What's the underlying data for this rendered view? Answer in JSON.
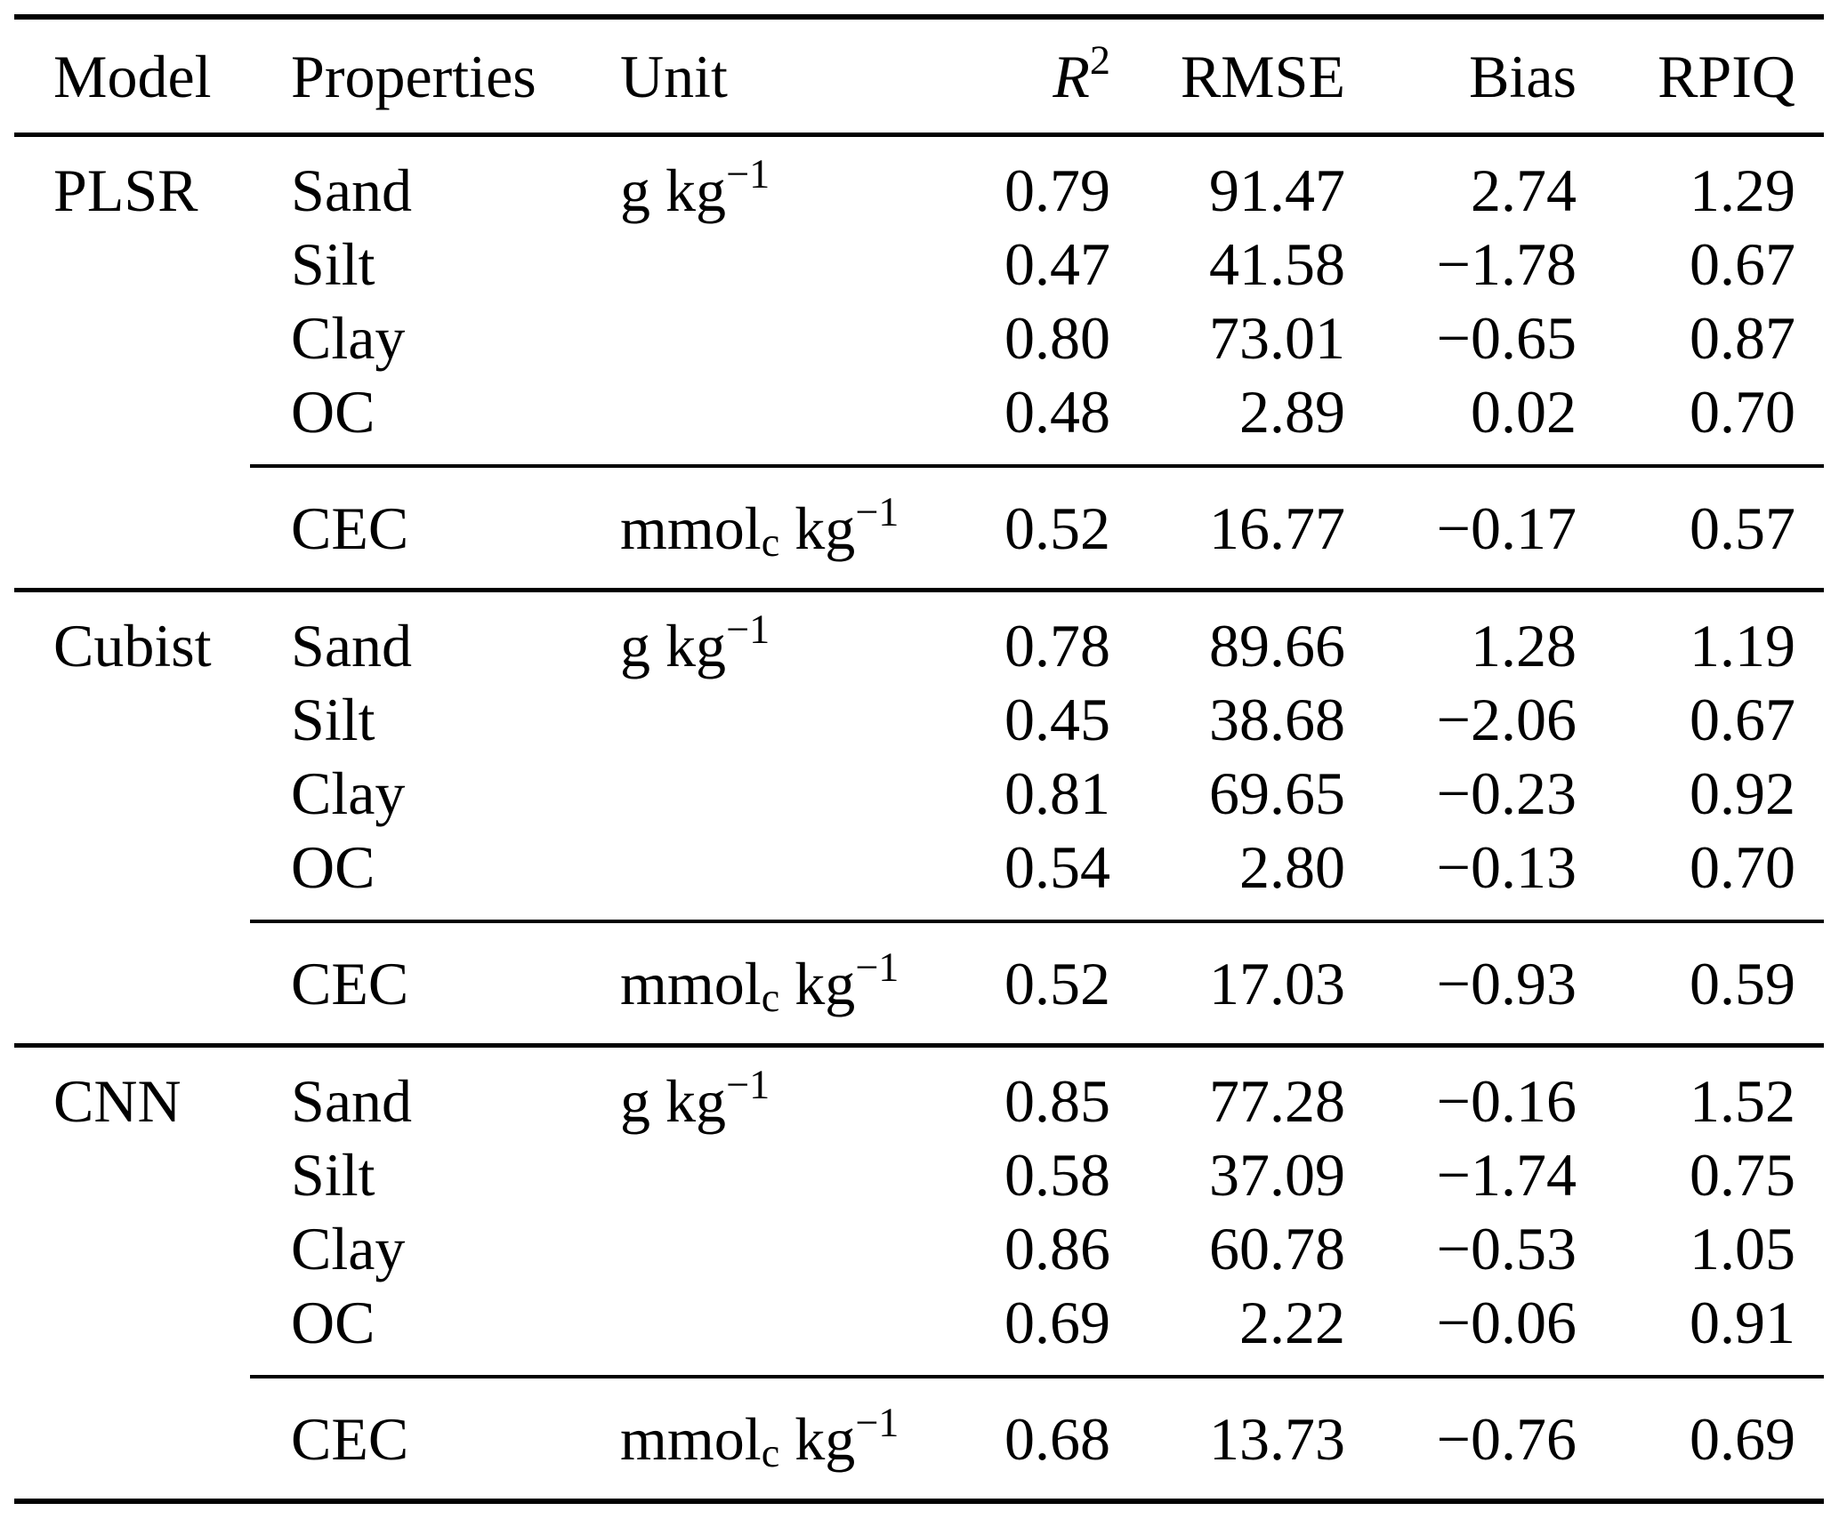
{
  "header": {
    "model": "Model",
    "properties": "Properties",
    "unit": "Unit",
    "r2_base": "R",
    "r2_sup": "2",
    "rmse": "RMSE",
    "bias": "Bias",
    "rpiq": "RPIQ"
  },
  "sections": [
    {
      "model": "PLSR",
      "unit": {
        "base": "g kg",
        "sup": "−1"
      },
      "rows": [
        {
          "property": "Sand",
          "r2": "0.79",
          "rmse": "91.47",
          "bias": "2.74",
          "rpiq": "1.29"
        },
        {
          "property": "Silt",
          "r2": "0.47",
          "rmse": "41.58",
          "bias": "−1.78",
          "rpiq": "0.67"
        },
        {
          "property": "Clay",
          "r2": "0.80",
          "rmse": "73.01",
          "bias": "−0.65",
          "rpiq": "0.87"
        },
        {
          "property": "OC",
          "r2": "0.48",
          "rmse": "2.89",
          "bias": "0.02",
          "rpiq": "0.70"
        }
      ],
      "cec_row": {
        "property": "CEC",
        "unit": {
          "pre": "mmol",
          "sub": "c",
          "mid": " kg",
          "sup": "−1"
        },
        "r2": "0.52",
        "rmse": "16.77",
        "bias": "−0.17",
        "rpiq": "0.57"
      }
    },
    {
      "model": "Cubist",
      "unit": {
        "base": "g kg",
        "sup": "−1"
      },
      "rows": [
        {
          "property": "Sand",
          "r2": "0.78",
          "rmse": "89.66",
          "bias": "1.28",
          "rpiq": "1.19"
        },
        {
          "property": "Silt",
          "r2": "0.45",
          "rmse": "38.68",
          "bias": "−2.06",
          "rpiq": "0.67"
        },
        {
          "property": "Clay",
          "r2": "0.81",
          "rmse": "69.65",
          "bias": "−0.23",
          "rpiq": "0.92"
        },
        {
          "property": "OC",
          "r2": "0.54",
          "rmse": "2.80",
          "bias": "−0.13",
          "rpiq": "0.70"
        }
      ],
      "cec_row": {
        "property": "CEC",
        "unit": {
          "pre": "mmol",
          "sub": "c",
          "mid": " kg",
          "sup": "−1"
        },
        "r2": "0.52",
        "rmse": "17.03",
        "bias": "−0.93",
        "rpiq": "0.59"
      }
    },
    {
      "model": "CNN",
      "unit": {
        "base": "g kg",
        "sup": "−1"
      },
      "rows": [
        {
          "property": "Sand",
          "r2": "0.85",
          "rmse": "77.28",
          "bias": "−0.16",
          "rpiq": "1.52"
        },
        {
          "property": "Silt",
          "r2": "0.58",
          "rmse": "37.09",
          "bias": "−1.74",
          "rpiq": "0.75"
        },
        {
          "property": "Clay",
          "r2": "0.86",
          "rmse": "60.78",
          "bias": "−0.53",
          "rpiq": "1.05"
        },
        {
          "property": "OC",
          "r2": "0.69",
          "rmse": "2.22",
          "bias": "−0.06",
          "rpiq": "0.91"
        }
      ],
      "cec_row": {
        "property": "CEC",
        "unit": {
          "pre": "mmol",
          "sub": "c",
          "mid": " kg",
          "sup": "−1"
        },
        "r2": "0.68",
        "rmse": "13.73",
        "bias": "−0.76",
        "rpiq": "0.69"
      }
    }
  ]
}
